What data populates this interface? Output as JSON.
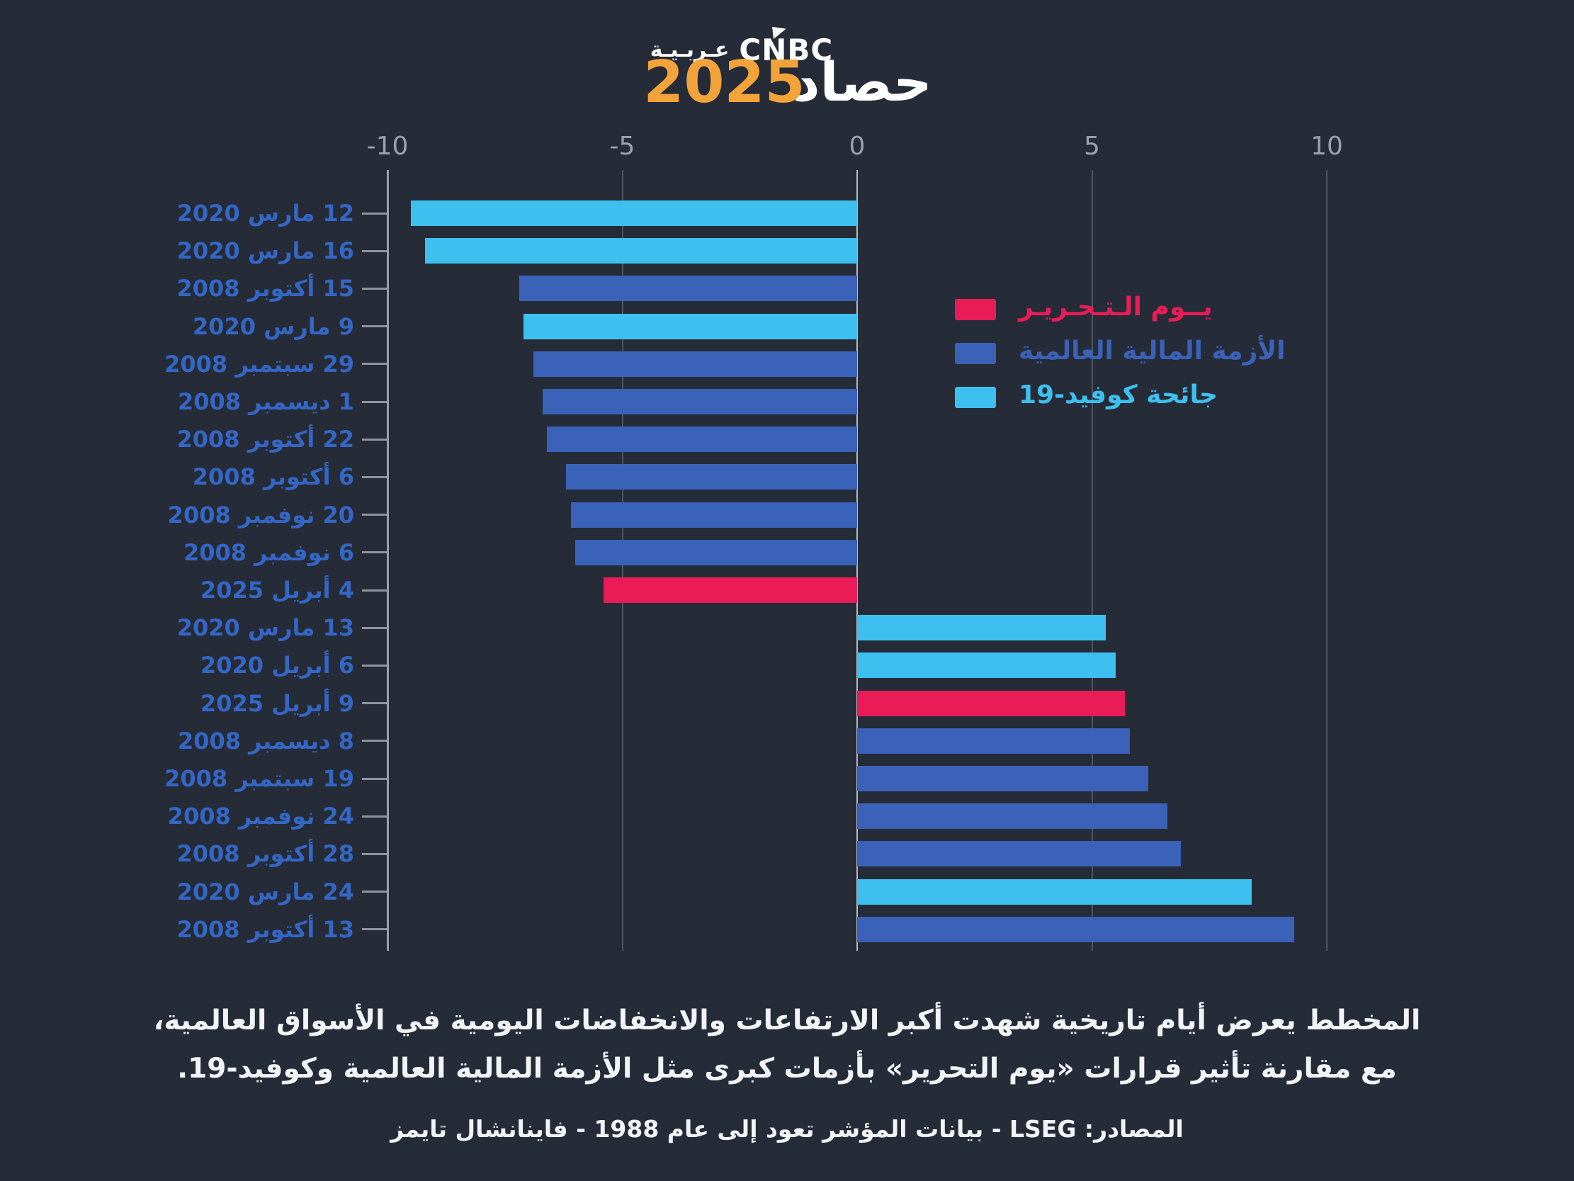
{
  "header": {
    "brand_latin": "CNBC",
    "brand_arabic": "عـربـيـة",
    "logo_word": "حصاد",
    "logo_year": "2025"
  },
  "colors": {
    "background": "#262b38",
    "liberation": "#ea1c57",
    "gfc": "#3a62b8",
    "covid": "#3dc0ef",
    "grid_line": "#4f5560",
    "zero_line": "#b3b8c0",
    "axis_line": "#9aa0a8",
    "axis_label": "#9ba1ab",
    "row_label": "#3467c5",
    "tick_mark": "#8f959e",
    "caption_text": "#f2f3f5",
    "logo_year_color": "#f2a43a"
  },
  "legend": {
    "items": [
      {
        "label": "يــوم الـتـحـريـر",
        "series": "liberation"
      },
      {
        "label": "الأزمة المالية العالمية",
        "series": "gfc"
      },
      {
        "label": "جائحة كوفيد-19",
        "series": "covid"
      }
    ]
  },
  "chart_data": {
    "type": "bar",
    "orientation": "horizontal",
    "unit": "% daily change",
    "xlim": [
      -10,
      10
    ],
    "grid": true,
    "legend_position": "right",
    "x_ticks": [
      {
        "label": "-10",
        "value": -10
      },
      {
        "label": "-5",
        "value": -5
      },
      {
        "label": "0",
        "value": 0
      },
      {
        "label": "5",
        "value": 5
      },
      {
        "label": "10",
        "value": 10
      }
    ],
    "rows": [
      {
        "date": "12 مارس 2020",
        "value": -9.5,
        "series": "covid"
      },
      {
        "date": "16 مارس 2020",
        "value": -9.2,
        "series": "covid"
      },
      {
        "date": "15 أكتوبر 2008",
        "value": -7.2,
        "series": "gfc"
      },
      {
        "date": "9 مارس 2020",
        "value": -7.1,
        "series": "covid"
      },
      {
        "date": "29 سبتمبر 2008",
        "value": -6.9,
        "series": "gfc"
      },
      {
        "date": "1 ديسمبر 2008",
        "value": -6.7,
        "series": "gfc"
      },
      {
        "date": "22 أكتوبر 2008",
        "value": -6.6,
        "series": "gfc"
      },
      {
        "date": "6 أكتوبر 2008",
        "value": -6.2,
        "series": "gfc"
      },
      {
        "date": "20 نوفمبر 2008",
        "value": -6.1,
        "series": "gfc"
      },
      {
        "date": "6 نوفمبر 2008",
        "value": -6.0,
        "series": "gfc"
      },
      {
        "date": "4 أبريل 2025",
        "value": -5.4,
        "series": "liberation"
      },
      {
        "date": "13 مارس 2020",
        "value": 5.3,
        "series": "covid"
      },
      {
        "date": "6 أبريل 2020",
        "value": 5.5,
        "series": "covid"
      },
      {
        "date": "9 أبريل 2025",
        "value": 5.7,
        "series": "liberation"
      },
      {
        "date": "8 ديسمبر 2008",
        "value": 5.8,
        "series": "gfc"
      },
      {
        "date": "19 سبتمبر 2008",
        "value": 6.2,
        "series": "gfc"
      },
      {
        "date": "24 نوفمبر 2008",
        "value": 6.6,
        "series": "gfc"
      },
      {
        "date": "28 أكتوبر 2008",
        "value": 6.9,
        "series": "gfc"
      },
      {
        "date": "24 مارس 2020",
        "value": 8.4,
        "series": "covid"
      },
      {
        "date": "13 أكتوبر 2008",
        "value": 9.3,
        "series": "gfc"
      }
    ]
  },
  "caption": {
    "line1": "المخطط يعرض أيام تاريخية شهدت أكبر الارتفاعات والانخفاضات اليومية في الأسواق العالمية،",
    "line2": "مع مقارنة تأثير قرارات «يوم التحرير» بأزمات كبرى مثل الأزمة المالية العالمية وكوفيد-19.",
    "source": "المصادر: LSEG - بيانات المؤشر تعود إلى عام 1988 - فاينانشال تايمز"
  }
}
